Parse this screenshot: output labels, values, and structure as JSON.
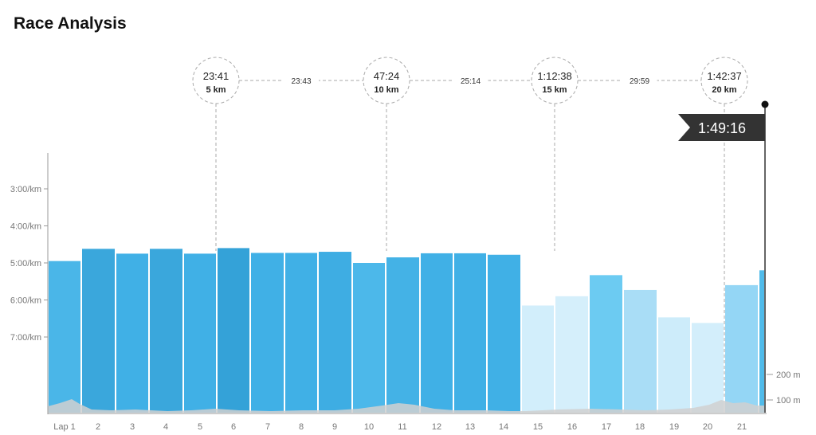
{
  "title": "Race Analysis",
  "chart_data": {
    "type": "bar",
    "categories": [
      "Lap 1",
      "2",
      "3",
      "4",
      "5",
      "6",
      "7",
      "8",
      "9",
      "10",
      "11",
      "12",
      "13",
      "14",
      "15",
      "16",
      "17",
      "18",
      "19",
      "20",
      "21",
      ""
    ],
    "pace_min_per_km": [
      4.95,
      4.62,
      4.75,
      4.62,
      4.75,
      4.6,
      4.73,
      4.73,
      4.7,
      5.0,
      4.85,
      4.74,
      4.74,
      4.78,
      6.15,
      5.9,
      5.33,
      5.73,
      6.47,
      6.62,
      5.6,
      5.2
    ],
    "bar_colors": [
      "#4ab6e8",
      "#3aa7dc",
      "#40b0e6",
      "#3aa7dc",
      "#40b0e6",
      "#34a2d8",
      "#40b0e6",
      "#40b0e6",
      "#3eade3",
      "#4cb8ea",
      "#44b2e6",
      "#40b0e6",
      "#40b0e6",
      "#40b0e6",
      "#d2eefb",
      "#d5effb",
      "#6ccbf2",
      "#a9ddf6",
      "#cdecfa",
      "#d3eefb",
      "#94d6f5",
      "#50bbea"
    ],
    "y_ticks": [
      {
        "label": "3:00/km",
        "value": 3
      },
      {
        "label": "4:00/km",
        "value": 4
      },
      {
        "label": "5:00/km",
        "value": 5
      },
      {
        "label": "6:00/km",
        "value": 6
      },
      {
        "label": "7:00/km",
        "value": 7
      }
    ],
    "elevation_ticks": [
      {
        "label": "200 m",
        "value": 200
      },
      {
        "label": "100 m",
        "value": 100
      }
    ],
    "splits": [
      {
        "time": "23:41",
        "distance": "5 km"
      },
      {
        "time": "47:24",
        "distance": "10 km"
      },
      {
        "time": "1:12:38",
        "distance": "15 km"
      },
      {
        "time": "1:42:37",
        "distance": "20 km"
      }
    ],
    "segment_times": [
      "23:43",
      "25:14",
      "29:59"
    ],
    "finish_time": "1:49:16",
    "colors": {
      "axis": "#999999",
      "dashed": "#aaaaaa",
      "elevation": "#d0d0d0",
      "flag": "#333333"
    }
  }
}
